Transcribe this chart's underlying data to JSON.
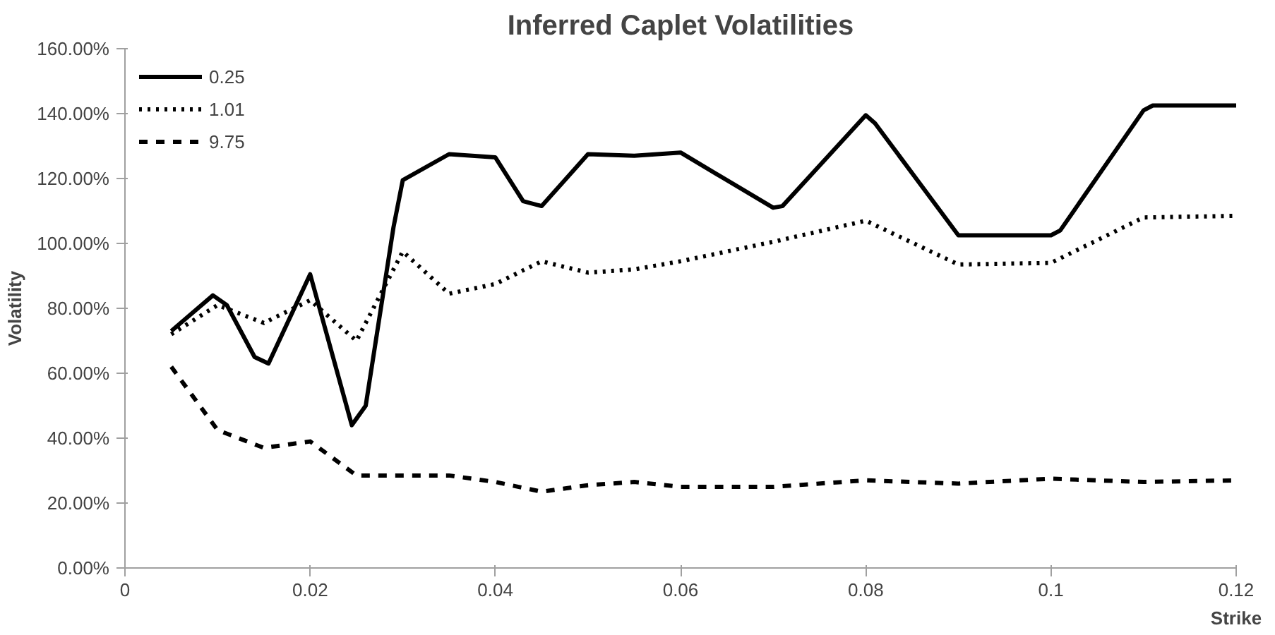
{
  "chart_data": {
    "type": "line",
    "title": "Inferred Caplet Volatilities",
    "xlabel": "Strike",
    "ylabel": "Volatility",
    "xlim": [
      0,
      0.12
    ],
    "xticks": [
      0,
      0.02,
      0.04,
      0.06,
      0.08,
      0.1,
      0.12
    ],
    "ylim": [
      0,
      160
    ],
    "yticks": [
      {
        "value": 0,
        "label": "0.00%"
      },
      {
        "value": 20,
        "label": "20.00%"
      },
      {
        "value": 40,
        "label": "40.00%"
      },
      {
        "value": 60,
        "label": "60.00%"
      },
      {
        "value": 80,
        "label": "80.00%"
      },
      {
        "value": 100,
        "label": "100.00%"
      },
      {
        "value": 120,
        "label": "120.00%"
      },
      {
        "value": 140,
        "label": "140.00%"
      },
      {
        "value": 160,
        "label": "160.00%"
      }
    ],
    "grid": false,
    "legend": "top left",
    "marker": "none",
    "series": [
      {
        "name": "0.25",
        "color": "#000000",
        "line_style": "solid",
        "x": [
          0.005,
          0.0095,
          0.011,
          0.014,
          0.0155,
          0.02,
          0.0245,
          0.026,
          0.029,
          0.03,
          0.035,
          0.04,
          0.043,
          0.045,
          0.05,
          0.055,
          0.06,
          0.07,
          0.071,
          0.08,
          0.081,
          0.09,
          0.1,
          0.101,
          0.11,
          0.111,
          0.12
        ],
        "values": [
          73,
          84,
          81,
          65,
          63,
          90.5,
          44,
          50,
          105,
          119.5,
          127.5,
          126.5,
          113,
          111.5,
          127.5,
          127,
          128,
          111,
          111.5,
          139.5,
          137,
          102.5,
          102.5,
          104,
          141,
          142.5,
          142.5
        ]
      },
      {
        "name": "1.01",
        "color": "#000000",
        "line_style": "dotted",
        "x": [
          0.005,
          0.01,
          0.015,
          0.02,
          0.025,
          0.03,
          0.035,
          0.04,
          0.045,
          0.05,
          0.055,
          0.06,
          0.07,
          0.08,
          0.09,
          0.1,
          0.11,
          0.12
        ],
        "values": [
          72,
          81,
          75.5,
          82.5,
          70,
          97.5,
          84.5,
          87.5,
          94.5,
          91,
          92,
          94.5,
          100.5,
          107,
          93.5,
          94,
          108,
          108.5
        ]
      },
      {
        "name": "9.75",
        "color": "#000000",
        "line_style": "dashed",
        "x": [
          0.005,
          0.01,
          0.015,
          0.02,
          0.025,
          0.03,
          0.035,
          0.04,
          0.045,
          0.05,
          0.055,
          0.06,
          0.07,
          0.08,
          0.09,
          0.1,
          0.11,
          0.12
        ],
        "values": [
          62,
          42.5,
          37,
          39,
          28.5,
          28.5,
          28.5,
          26.5,
          23.5,
          25.5,
          26.5,
          25,
          25,
          27,
          26,
          27.5,
          26.5,
          27
        ]
      }
    ]
  }
}
